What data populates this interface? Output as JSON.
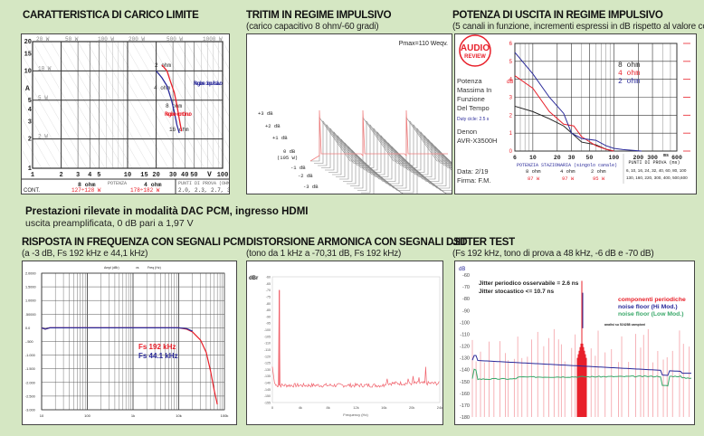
{
  "header": {
    "note_title": "Prestazioni rilevate in modalità DAC PCM, ingresso HDMI",
    "note_sub": "uscita preamplificata, 0 dB pari a 1,97 V"
  },
  "panels": [
    {
      "title": "CARATTERISTICA DI CARICO LIMITE",
      "subtitle": ""
    },
    {
      "title": "TRITIM IN REGIME IMPULSIVO",
      "subtitle": "(carico capacitivo 8 ohm/-60 gradi)"
    },
    {
      "title": "POTENZA DI USCITA IN REGIME IMPULSIVO",
      "subtitle": "(5 canali in funzione, incrementi espressi in dB rispetto al valore continuo)"
    },
    {
      "title": "RISPOSTA IN FREQUENZA CON SEGNALI PCM",
      "subtitle": "(a -3 dB, Fs 192 kHz e 44,1 kHz)"
    },
    {
      "title": "DISTORSIONE ARMONICA CON SEGNALI DSD",
      "subtitle": "(tono da 1 kHz a -70,31 dB, Fs 192 kHz)"
    },
    {
      "title": "JITTER TEST",
      "subtitle": "(Fs 192 kHz, tono di prova a 48 kHz, -6 dB e -70 dB)"
    }
  ],
  "chart_data": [
    {
      "type": "line",
      "xscale": "log",
      "yscale": "log",
      "xlim": [
        1,
        100
      ],
      "ylim": [
        1,
        20
      ],
      "xlabel": "V",
      "ylabel": "A",
      "xticks": [
        "1",
        "2",
        "3",
        "4",
        "5",
        "10",
        "15",
        "20",
        "30",
        "40",
        "50",
        "100"
      ],
      "xtick_values": [
        1,
        2,
        3,
        4,
        5,
        10,
        15,
        20,
        30,
        40,
        50,
        100
      ],
      "yticks": [
        "1",
        "2",
        "3",
        "4",
        "5",
        "10",
        "15",
        "20"
      ],
      "ytick_values": [
        1,
        2,
        3,
        4,
        5,
        10,
        15,
        20
      ],
      "power_labels_top": [
        "20 W",
        "50 W",
        "100 W",
        "200 W",
        "500 W",
        "1000 W"
      ],
      "power_labels_left": [
        "10 W",
        "5 W",
        "2 W"
      ],
      "load_labels": [
        "2 ohm",
        "4 ohm",
        "8 ohm",
        "16 ohm"
      ],
      "series": [
        {
          "name": "Regime continuo",
          "color": "#e8202a",
          "x": [
            23,
            26,
            28,
            31,
            33,
            35,
            37
          ],
          "y": [
            11.5,
            10,
            8,
            6,
            4.5,
            3.2,
            2.4
          ]
        },
        {
          "name": "Regime impulsivo",
          "color": "#2a2a9a",
          "x": [
            20,
            23,
            26,
            29,
            31,
            33,
            35
          ],
          "y": [
            10,
            8.5,
            7,
            5,
            3.8,
            2.8,
            2.3
          ]
        }
      ],
      "table": {
        "col_8": "8 ohm",
        "col_potenza": "POTENZA",
        "col_4": "4 ohm",
        "col_punti": "PUNTI DI PROVA (OHM)",
        "rows": [
          {
            "label": "CONT.",
            "v8": "127÷128 W",
            "v4": "178÷182 W",
            "punti": "2.0, 2.3, 2.7, 3.2"
          },
          {
            "label": "IMP.",
            "v8": "146÷150 W",
            "v4": "214÷220 W",
            "punti": "4.0, 5.3, 8.0, 16.0"
          }
        ]
      }
    },
    {
      "type": "waterfall",
      "annotation": "Pmax=110 Weqv.",
      "ylabels": [
        "+3 dB",
        "+2 dB",
        "+1 dB",
        "0 dB",
        "(105 W)",
        "-1 dB",
        "-2 dB",
        "-3 dB"
      ],
      "bursts": 3
    },
    {
      "type": "line",
      "xscale": "log",
      "xlim": [
        6,
        600
      ],
      "ylim": [
        0,
        6
      ],
      "ylabel": "dB",
      "xunit": "ms",
      "xticks": [
        "6",
        "10",
        "20",
        "30",
        "50",
        "100",
        "200",
        "300",
        "600"
      ],
      "xtick_values": [
        6,
        10,
        20,
        30,
        50,
        100,
        200,
        300,
        600
      ],
      "yticks": [
        "0",
        "1",
        "2",
        "3",
        "4",
        "5",
        "6"
      ],
      "legend": [
        "8 ohm",
        "4 ohm",
        "2 ohm"
      ],
      "legend_placement": "top-right",
      "series": [
        {
          "name": "8 ohm",
          "color": "#222222",
          "x": [
            6,
            10,
            16,
            24,
            32,
            40,
            60,
            80,
            100
          ],
          "y": [
            2.5,
            2.2,
            1.8,
            1.4,
            0.9,
            0.5,
            0.35,
            0.1,
            0
          ]
        },
        {
          "name": "4 ohm",
          "color": "#e8202a",
          "x": [
            6,
            10,
            16,
            24,
            32,
            40,
            60,
            80,
            100
          ],
          "y": [
            4.2,
            3.5,
            2.2,
            1.5,
            1.4,
            0.8,
            0.3,
            0.1,
            0
          ]
        },
        {
          "name": "2 ohm",
          "color": "#2a2a9a",
          "x": [
            6,
            10,
            16,
            24,
            30,
            40,
            60,
            80,
            100,
            130,
            160,
            220
          ],
          "y": [
            5.5,
            4.3,
            3,
            2.1,
            1,
            0.7,
            0.6,
            0.3,
            0.15,
            0.08,
            0.05,
            0
          ]
        }
      ],
      "logo": [
        "AUDIO",
        "REVIEW"
      ],
      "info": [
        "Potenza",
        "Massima In",
        "Funzione",
        "Del Tempo"
      ],
      "duty": "Duty cicle: 2.5 s",
      "device": [
        "Denon",
        "AVR-X3500H"
      ],
      "date": "Data: 2/19",
      "sign": "Firma: F.M.",
      "footer": {
        "stationary": "POTENZIA STAZIONARIA (singolo canale)",
        "loads": [
          "8 ohm",
          "4 ohm",
          "2 ohm"
        ],
        "powers": [
          "87 W",
          "97 W",
          "95 W"
        ],
        "points_title": "PUNTI DI PROVA (ms)",
        "points": [
          "6, 10, 16, 24, 32, 40, 60, 80, 100",
          "130, 160, 220, 300, 400, 500,600"
        ]
      }
    },
    {
      "type": "line",
      "xscale": "log",
      "xlim": [
        10,
        100000
      ],
      "ylim": [
        -3,
        2
      ],
      "xticks": [
        "10",
        "100",
        "1k",
        "10k",
        "100k"
      ],
      "xtick_values": [
        10,
        100,
        1000,
        10000,
        100000
      ],
      "yticks": [
        "2.0000",
        "1.5000",
        "1.0000",
        ".50000",
        "0.0",
        "-.500",
        "-1.000",
        "-1.500",
        "-2.000",
        "-2.500",
        "-3.000"
      ],
      "top_labels": [
        "Ampl (dBr)",
        "vs",
        "Freq (Hz)"
      ],
      "series": [
        {
          "name": "Fs  192 kHz",
          "color": "#e8202a",
          "x": [
            10,
            12,
            15,
            100,
            1000,
            10000,
            15000,
            20000,
            30000,
            40000,
            50000,
            60000,
            70000
          ],
          "y": [
            0,
            -0.05,
            0,
            0,
            0,
            0,
            -0.05,
            -0.15,
            -0.45,
            -0.9,
            -1.6,
            -2.3,
            -2.8
          ]
        },
        {
          "name": "Fs 44.1 kHz",
          "color": "#2a2a9a",
          "x": [
            10,
            12,
            15,
            100,
            1000,
            10000,
            15000,
            20000
          ],
          "y": [
            0,
            -0.05,
            0,
            0,
            0,
            0,
            -0.03,
            -0.12
          ]
        }
      ]
    },
    {
      "type": "line",
      "xlim": [
        0,
        24000
      ],
      "ylim": [
        -155,
        -60
      ],
      "ylabel": "dBr",
      "xlabel": "Frequency (Hz)",
      "xticks": [
        "0",
        "4k",
        "8k",
        "12k",
        "16k",
        "20k",
        "24k"
      ],
      "yticks": [
        "-60",
        "-65",
        "-70",
        "-75",
        "-80",
        "-85",
        "-90",
        "-95",
        "-100",
        "-105",
        "-110",
        "-115",
        "-120",
        "-125",
        "-130",
        "-135",
        "-140",
        "-145",
        "-150",
        "-155"
      ],
      "noise_floor": -142,
      "peaks": [
        {
          "x": 1000,
          "y": -70
        },
        {
          "x": 16500,
          "y": -137
        },
        {
          "x": 19500,
          "y": -137
        },
        {
          "x": 20200,
          "y": -135
        },
        {
          "x": 21000,
          "y": -136
        },
        {
          "x": 22000,
          "y": -128
        },
        {
          "x": 23000,
          "y": -120
        }
      ],
      "color": "#f0606a"
    },
    {
      "type": "line",
      "ylim": [
        -180,
        -60
      ],
      "ylabel": "dB",
      "yticks": [
        "-60",
        "-70",
        "-80",
        "-90",
        "-100",
        "-110",
        "-120",
        "-130",
        "-140",
        "-150",
        "-160",
        "-170",
        "-180"
      ],
      "annotations": [
        "Jitter  periodico osservabile =  2.6 ns",
        "Jitter stocastico <=  10.7 ns"
      ],
      "legend": [
        {
          "label": "componenti  periodiche",
          "color": "#e8202a"
        },
        {
          "label": "noise floor (Hi Mod.)",
          "color": "#2a2a9a"
        },
        {
          "label": "noise floor (Low Mod.)",
          "color": "#3aa86a"
        }
      ],
      "note": "analisi su 524288 campioni",
      "center_peak": -65,
      "hi_mod": {
        "start": -132,
        "end": -143
      },
      "low_mod": {
        "start": -148,
        "end": -147
      }
    }
  ]
}
